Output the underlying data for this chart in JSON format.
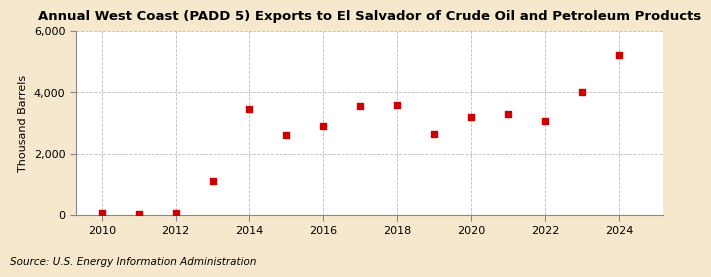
{
  "title": "Annual West Coast (PADD 5) Exports to El Salvador of Crude Oil and Petroleum Products",
  "ylabel": "Thousand Barrels",
  "source": "Source: U.S. Energy Information Administration",
  "fig_background_color": "#f5e8cc",
  "plot_background_color": "#ffffff",
  "marker_color": "#cc0000",
  "grid_color": "#aaaaaa",
  "years": [
    2010,
    2011,
    2012,
    2013,
    2014,
    2015,
    2016,
    2017,
    2018,
    2019,
    2020,
    2021,
    2022,
    2023,
    2024
  ],
  "values": [
    55,
    40,
    55,
    1100,
    3450,
    2600,
    2900,
    3550,
    3600,
    2650,
    3200,
    3300,
    3050,
    4000,
    5200
  ],
  "ylim": [
    0,
    6000
  ],
  "xlim": [
    2009.3,
    2025.2
  ],
  "yticks": [
    0,
    2000,
    4000,
    6000
  ],
  "xticks": [
    2010,
    2012,
    2014,
    2016,
    2018,
    2020,
    2022,
    2024
  ],
  "title_fontsize": 9.5,
  "ylabel_fontsize": 8,
  "tick_fontsize": 8,
  "source_fontsize": 7.5
}
